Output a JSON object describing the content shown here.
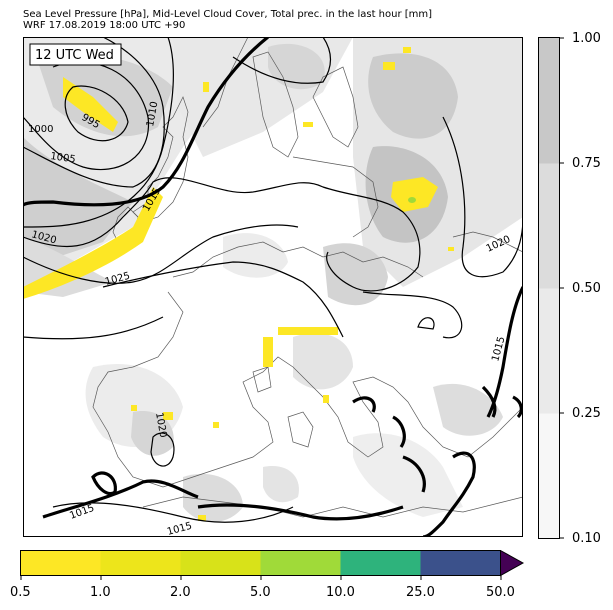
{
  "header": {
    "title_line1": "Sea Level Pressure [hPa], Mid-Level Cloud Cover, Total prec. in the last hour [mm]",
    "title_line2": "WRF 17.08.2019 18:00 UTC +90"
  },
  "map": {
    "time_label": "12 UTC Wed",
    "isobar_labels": [
      {
        "value": "995"
      },
      {
        "value": "1000"
      },
      {
        "value": "1005"
      },
      {
        "value": "1010"
      },
      {
        "value": "1015"
      },
      {
        "value": "1020"
      },
      {
        "value": "1025"
      },
      {
        "value": "1020"
      },
      {
        "value": "1015"
      },
      {
        "value": "1020"
      },
      {
        "value": "1015"
      },
      {
        "value": "1015"
      }
    ],
    "colors": {
      "cloud_light": "#f4f4f4",
      "cloud_mid": "#e3e3e3",
      "cloud_dark": "#c8c8c8",
      "isobar": "#000000",
      "coast": "#555555"
    }
  },
  "cloud_colorbar": {
    "ticks": [
      "0.10",
      "0.25",
      "0.50",
      "0.75",
      "1.00"
    ],
    "colors": [
      "#f7f7f7",
      "#eaeaea",
      "#dcdcdc",
      "#c8c8c8"
    ]
  },
  "precip_colorbar": {
    "ticks": [
      "0.5",
      "1.0",
      "2.0",
      "5.0",
      "10.0",
      "25.0",
      "50.0"
    ],
    "colors": [
      "#fde725",
      "#ede51b",
      "#d8e219",
      "#a0da39",
      "#2eb37c",
      "#3b518b",
      "#440154"
    ]
  }
}
